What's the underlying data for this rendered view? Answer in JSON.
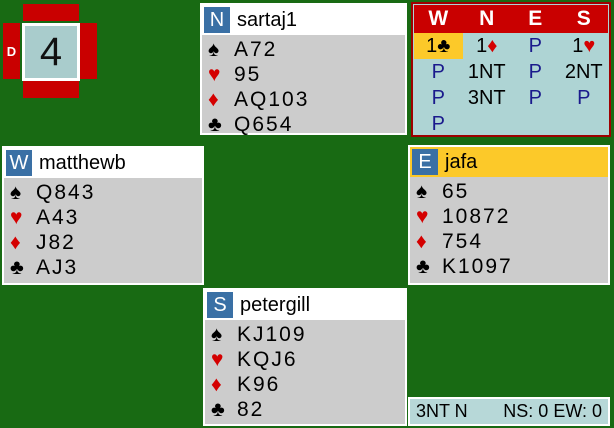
{
  "board": {
    "number": "4",
    "dealer_label": "D"
  },
  "suit_symbols": {
    "spade": "♠",
    "heart": "♥",
    "diamond": "♦",
    "club": "♣"
  },
  "players": {
    "north": {
      "seat": "N",
      "name": "sartaj1",
      "active": false,
      "suits": [
        {
          "suit": "spade",
          "cards": "A72"
        },
        {
          "suit": "heart",
          "cards": "95"
        },
        {
          "suit": "diamond",
          "cards": "AQ103"
        },
        {
          "suit": "club",
          "cards": "Q654"
        }
      ]
    },
    "west": {
      "seat": "W",
      "name": "matthewb",
      "active": false,
      "suits": [
        {
          "suit": "spade",
          "cards": "Q843"
        },
        {
          "suit": "heart",
          "cards": "A43"
        },
        {
          "suit": "diamond",
          "cards": "J82"
        },
        {
          "suit": "club",
          "cards": "AJ3"
        }
      ]
    },
    "east": {
      "seat": "E",
      "name": "jafa",
      "active": true,
      "suits": [
        {
          "suit": "spade",
          "cards": "65"
        },
        {
          "suit": "heart",
          "cards": "10872"
        },
        {
          "suit": "diamond",
          "cards": "754"
        },
        {
          "suit": "club",
          "cards": "K1097"
        }
      ]
    },
    "south": {
      "seat": "S",
      "name": "petergill",
      "active": false,
      "suits": [
        {
          "suit": "spade",
          "cards": "KJ109"
        },
        {
          "suit": "heart",
          "cards": "KQJ6"
        },
        {
          "suit": "diamond",
          "cards": "K96"
        },
        {
          "suit": "club",
          "cards": "82"
        }
      ]
    }
  },
  "auction": {
    "headers": [
      "W",
      "N",
      "E",
      "S"
    ],
    "bids": [
      {
        "label": "1",
        "suit": "club",
        "highlight": true
      },
      {
        "label": "1",
        "suit": "diamond"
      },
      {
        "label": "P"
      },
      {
        "label": "1",
        "suit": "heart"
      },
      {
        "label": "P"
      },
      {
        "label": "1NT"
      },
      {
        "label": "P"
      },
      {
        "label": "2NT"
      },
      {
        "label": "P"
      },
      {
        "label": "3NT"
      },
      {
        "label": "P"
      },
      {
        "label": "P"
      },
      {
        "label": "P"
      }
    ]
  },
  "status": {
    "contract": "3NT N",
    "score": "NS: 0 EW: 0"
  },
  "colors": {
    "table_green": "#186a13",
    "red": "#c90000",
    "gold": "#fcc929",
    "panel_gray": "#cccccc",
    "seat_blue": "#3a70a5",
    "light_teal": "#aed4d4",
    "suit_red": "#d40000",
    "pass_navy": "#1a1a8c"
  }
}
